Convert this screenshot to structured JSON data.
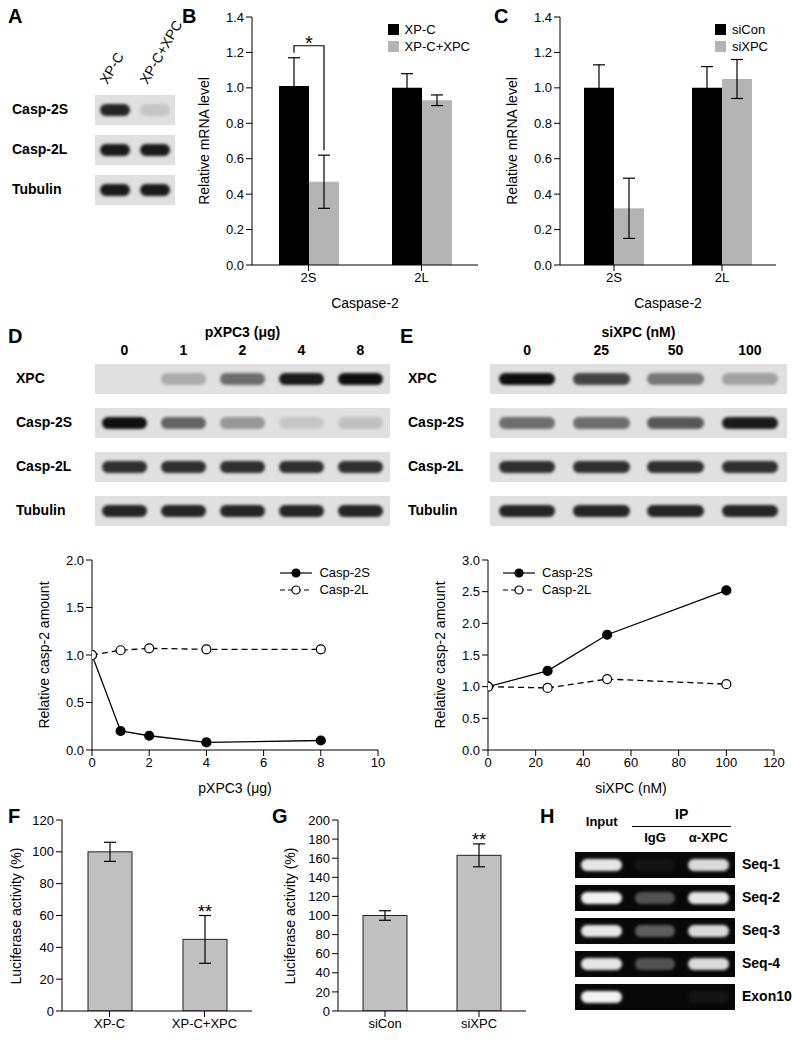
{
  "chart_data": [
    {
      "label": "B",
      "type": "bar",
      "categories": [
        "2S",
        "2L"
      ],
      "xlabel": "Caspase-2",
      "ylabel": "Relative mRNA level",
      "ylim": [
        0,
        1.4
      ],
      "yticks": [
        {
          "value": 0,
          "label": "0.0"
        },
        0.2,
        0.4,
        0.6,
        0.8,
        {
          "value": 1,
          "label": "1.0"
        },
        1.2,
        1.4
      ],
      "legend": "upper right",
      "series": [
        {
          "name": "XP-C",
          "color": "#000000",
          "values": [
            1.01,
            1.0
          ],
          "errors": [
            0.16,
            0.08
          ]
        },
        {
          "name": "XP-C+XPC",
          "color": "#b4b4b4",
          "values": [
            0.47,
            0.93
          ],
          "errors": [
            0.15,
            0.03
          ]
        }
      ],
      "annotation": {
        "text": "*",
        "category": "2S"
      }
    },
    {
      "label": "C",
      "type": "bar",
      "categories": [
        "2S",
        "2L"
      ],
      "xlabel": "Caspase-2",
      "ylabel": "Relative mRNA level",
      "ylim": [
        0,
        1.4
      ],
      "yticks": [
        {
          "value": 0,
          "label": "0.0"
        },
        0.2,
        0.4,
        0.6,
        0.8,
        {
          "value": 1,
          "label": "1.0"
        },
        1.2,
        1.4
      ],
      "legend": "upper right",
      "series": [
        {
          "name": "siCon",
          "color": "#000000",
          "values": [
            1.0,
            1.0
          ],
          "errors": [
            0.13,
            0.12
          ]
        },
        {
          "name": "siXPC",
          "color": "#b4b4b4",
          "values": [
            0.32,
            1.05
          ],
          "errors": [
            0.17,
            0.11
          ]
        }
      ]
    },
    {
      "type": "line",
      "x": [
        0,
        1,
        2,
        4,
        8
      ],
      "xlim": [
        0,
        10
      ],
      "xticks": [
        0,
        2,
        4,
        6,
        8,
        10
      ],
      "xlabel": "pXPC3 (μg)",
      "ylabel": "Relative casp-2 amount",
      "ylim": [
        0,
        2
      ],
      "yticks": [
        {
          "value": 0,
          "label": "0.0"
        },
        0.5,
        {
          "value": 1,
          "label": "1.0"
        },
        1.5,
        {
          "value": 2,
          "label": "2.0"
        }
      ],
      "legend": "upper right",
      "series": [
        {
          "name": "Casp-2S",
          "color": "#000000",
          "marker": "filled circle",
          "line_style": "solid",
          "values": [
            1.0,
            0.2,
            0.15,
            0.08,
            0.1
          ]
        },
        {
          "name": "Casp-2L",
          "color": "#000000",
          "marker": "open circle",
          "line_style": "dashed",
          "values": [
            1.0,
            1.05,
            1.07,
            1.06,
            1.06
          ]
        }
      ]
    },
    {
      "type": "line",
      "x": [
        0,
        25,
        50,
        100
      ],
      "xlim": [
        0,
        120
      ],
      "xticks": [
        0,
        20,
        40,
        60,
        80,
        100,
        120
      ],
      "xlabel": "siXPC (nM)",
      "ylabel": "Relative casp-2 amount",
      "ylim": [
        0,
        3
      ],
      "yticks": [
        {
          "value": 0,
          "label": "0.0"
        },
        0.5,
        {
          "value": 1,
          "label": "1.0"
        },
        1.5,
        {
          "value": 2,
          "label": "2.0"
        },
        2.5,
        {
          "value": 3,
          "label": "3.0"
        }
      ],
      "legend": "upper left",
      "series": [
        {
          "name": "Casp-2S",
          "color": "#000000",
          "marker": "filled circle",
          "line_style": "solid",
          "values": [
            1.0,
            1.25,
            1.82,
            2.52
          ]
        },
        {
          "name": "Casp-2L",
          "color": "#000000",
          "marker": "open circle",
          "line_style": "dashed",
          "values": [
            1.0,
            0.98,
            1.12,
            1.04
          ]
        }
      ]
    },
    {
      "label": "F",
      "type": "bar",
      "categories": [
        "XP-C",
        "XP-C+XPC"
      ],
      "values": [
        100,
        45
      ],
      "errors": [
        6,
        15
      ],
      "color": "#c0c0c0",
      "ylabel": "Luciferase activity (%)",
      "ylim": [
        0,
        120
      ],
      "yticks": [
        0,
        20,
        40,
        60,
        80,
        100,
        120
      ],
      "annotation": {
        "text": "**",
        "category": "XP-C+XPC"
      }
    },
    {
      "label": "G",
      "type": "bar",
      "categories": [
        "siCon",
        "siXPC"
      ],
      "values": [
        100,
        163
      ],
      "errors": [
        5,
        12
      ],
      "color": "#c0c0c0",
      "ylabel": "Luciferase activity (%)",
      "ylim": [
        0,
        200
      ],
      "yticks": [
        0,
        20,
        40,
        60,
        80,
        100,
        120,
        140,
        160,
        180,
        200
      ],
      "annotation": {
        "text": "**",
        "category": "siXPC"
      }
    }
  ],
  "blots": [
    {
      "label": "A",
      "lanes": [
        "XP-C",
        "XP-C+XPC"
      ],
      "rows": [
        {
          "name": "Casp-2S",
          "intensity": [
            0.9,
            0.12
          ]
        },
        {
          "name": "Casp-2L",
          "intensity": [
            0.95,
            0.95
          ]
        },
        {
          "name": "Tubulin",
          "intensity": [
            0.95,
            0.95
          ]
        }
      ]
    },
    {
      "label": "D",
      "header": "pXPC3 (μg)",
      "lanes": [
        0,
        1,
        2,
        4,
        8
      ],
      "rows": [
        {
          "name": "XPC",
          "intensity": [
            0,
            0.25,
            0.55,
            0.95,
            1
          ]
        },
        {
          "name": "Casp-2S",
          "intensity": [
            1,
            0.6,
            0.35,
            0.12,
            0.15
          ]
        },
        {
          "name": "Casp-2L",
          "intensity": [
            0.85,
            0.85,
            0.85,
            0.85,
            0.85
          ]
        },
        {
          "name": "Tubulin",
          "intensity": [
            0.9,
            0.9,
            0.9,
            0.9,
            0.9
          ]
        }
      ]
    },
    {
      "label": "E",
      "header": "siXPC (nM)",
      "lanes": [
        0,
        25,
        50,
        100
      ],
      "rows": [
        {
          "name": "XPC",
          "intensity": [
            1,
            0.75,
            0.5,
            0.3
          ]
        },
        {
          "name": "Casp-2S",
          "intensity": [
            0.55,
            0.55,
            0.65,
            0.95
          ]
        },
        {
          "name": "Casp-2L",
          "intensity": [
            0.85,
            0.85,
            0.85,
            0.85
          ]
        },
        {
          "name": "Tubulin",
          "intensity": [
            0.9,
            0.9,
            0.9,
            0.9
          ]
        }
      ]
    },
    {
      "label": "H",
      "header": "IP",
      "lanes": [
        "Input",
        "IgG",
        "α-XPC"
      ],
      "rows": [
        {
          "name": "Seq-1",
          "intensity": [
            0.9,
            0.05,
            0.85
          ]
        },
        {
          "name": "Seq-2",
          "intensity": [
            0.95,
            0.3,
            0.9
          ]
        },
        {
          "name": "Seq-3",
          "intensity": [
            0.9,
            0.35,
            0.85
          ]
        },
        {
          "name": "Seq-4",
          "intensity": [
            0.9,
            0.3,
            0.85
          ]
        },
        {
          "name": "Exon10",
          "intensity": [
            0.95,
            0,
            0.05
          ]
        }
      ]
    }
  ]
}
